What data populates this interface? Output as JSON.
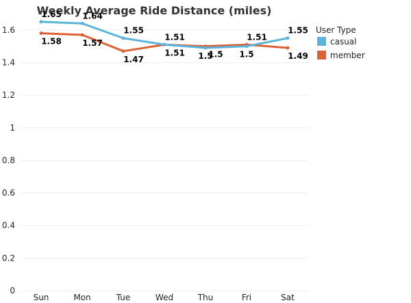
{
  "chart_data": {
    "type": "line",
    "title": "Weekly Average Ride Distance (miles)",
    "xlabel": "",
    "ylabel": "",
    "categories": [
      "Sun",
      "Mon",
      "Tue",
      "Wed",
      "Thu",
      "Fri",
      "Sat"
    ],
    "ylim": [
      0,
      1.7
    ],
    "yticks": [
      0,
      0.2,
      0.4,
      0.6,
      0.8,
      1,
      1.2,
      1.4,
      1.6
    ],
    "ytick_labels": [
      "0",
      "0.2",
      "0.4",
      "0.6",
      "0.8",
      "1",
      "1.2",
      "1.4",
      "1.6"
    ],
    "grid": true,
    "legend_title": "User Type",
    "legend_position": "top-right",
    "series": [
      {
        "name": "casual",
        "color": "#5ab4d9",
        "values": [
          1.65,
          1.64,
          1.55,
          1.51,
          1.49,
          1.5,
          1.55
        ],
        "labels": [
          "1.65",
          "1.64",
          "1.55",
          "1.51",
          "",
          "",
          "1.55"
        ],
        "label_pos": [
          "above",
          "above",
          "above",
          "above",
          "above",
          "above",
          "above"
        ]
      },
      {
        "name": "member",
        "color": "#dc6135",
        "values": [
          1.58,
          1.57,
          1.47,
          1.51,
          1.5,
          1.51,
          1.49
        ],
        "labels": [
          "1.58",
          "1.57",
          "1.47",
          "1.51",
          "1.5",
          "1.51",
          "1.49"
        ],
        "label_pos": [
          "below",
          "below",
          "below",
          "below",
          "below",
          "above",
          "below"
        ]
      }
    ],
    "extra_labels": [
      {
        "series": "casual",
        "index": 4,
        "text": "1.5",
        "pos": "below"
      },
      {
        "series": "casual",
        "index": 5,
        "text": "1.5",
        "pos": "below"
      }
    ]
  }
}
